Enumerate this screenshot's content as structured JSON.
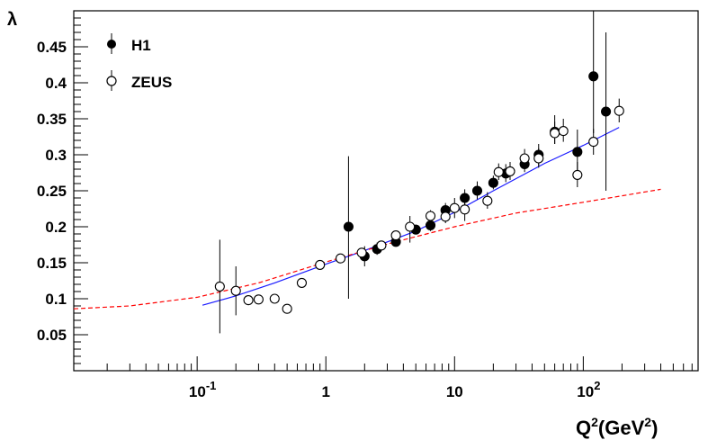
{
  "chart_data": {
    "type": "scatter",
    "xscale": "log",
    "xlim": [
      0.011,
      780
    ],
    "ylim": [
      0,
      0.5
    ],
    "grid": false,
    "legend_position": "top-left",
    "xlabel": {
      "main": "Q",
      "sup": "2",
      "unit_open": "(GeV",
      "unit_sup": "2",
      "unit_close": ")"
    },
    "ylabel": "λ",
    "x_ticks": [
      {
        "value": 0.1,
        "base": "10",
        "exp": "-1"
      },
      {
        "value": 1,
        "label": "1"
      },
      {
        "value": 10,
        "label": "10"
      },
      {
        "value": 100,
        "base": "10",
        "exp": "2"
      }
    ],
    "y_ticks": [
      {
        "value": 0.05,
        "label": "0.05"
      },
      {
        "value": 0.1,
        "label": "0.1"
      },
      {
        "value": 0.15,
        "label": "0.15"
      },
      {
        "value": 0.2,
        "label": "0.2"
      },
      {
        "value": 0.25,
        "label": "0.25"
      },
      {
        "value": 0.3,
        "label": "0.3"
      },
      {
        "value": 0.35,
        "label": "0.35"
      },
      {
        "value": 0.4,
        "label": "0.4"
      },
      {
        "value": 0.45,
        "label": "0.45"
      }
    ],
    "series": [
      {
        "name": "H1",
        "marker": "filled-circle",
        "color": "#000000",
        "points": [
          {
            "x": 1.5,
            "y": 0.2,
            "lo": 0.1,
            "hi": 0.298
          },
          {
            "x": 2.0,
            "y": 0.159,
            "lo": 0.145,
            "hi": 0.173
          },
          {
            "x": 2.5,
            "y": 0.169,
            "lo": 0.161,
            "hi": 0.178
          },
          {
            "x": 3.5,
            "y": 0.179,
            "lo": 0.173,
            "hi": 0.186
          },
          {
            "x": 5.0,
            "y": 0.196,
            "lo": 0.19,
            "hi": 0.203
          },
          {
            "x": 6.5,
            "y": 0.202,
            "lo": 0.194,
            "hi": 0.211
          },
          {
            "x": 8.5,
            "y": 0.223,
            "lo": 0.213,
            "hi": 0.233
          },
          {
            "x": 12,
            "y": 0.24,
            "lo": 0.228,
            "hi": 0.252
          },
          {
            "x": 15,
            "y": 0.25,
            "lo": 0.238,
            "hi": 0.263
          },
          {
            "x": 20,
            "y": 0.261,
            "lo": 0.252,
            "hi": 0.271
          },
          {
            "x": 25,
            "y": 0.274,
            "lo": 0.262,
            "hi": 0.287
          },
          {
            "x": 35,
            "y": 0.287,
            "lo": 0.276,
            "hi": 0.298
          },
          {
            "x": 45,
            "y": 0.3,
            "lo": 0.285,
            "hi": 0.315
          },
          {
            "x": 60,
            "y": 0.332,
            "lo": 0.315,
            "hi": 0.355
          },
          {
            "x": 90,
            "y": 0.304,
            "lo": 0.275,
            "hi": 0.335
          },
          {
            "x": 120,
            "y": 0.409,
            "lo": 0.33,
            "hi": 0.5
          },
          {
            "x": 150,
            "y": 0.36,
            "lo": 0.25,
            "hi": 0.47
          }
        ]
      },
      {
        "name": "ZEUS",
        "marker": "open-circle",
        "color": "#000000",
        "points": [
          {
            "x": 0.15,
            "y": 0.117,
            "lo": 0.052,
            "hi": 0.182
          },
          {
            "x": 0.2,
            "y": 0.111,
            "lo": 0.077,
            "hi": 0.145
          },
          {
            "x": 0.25,
            "y": 0.098,
            "lo": 0.091,
            "hi": 0.105
          },
          {
            "x": 0.3,
            "y": 0.099,
            "lo": 0.093,
            "hi": 0.105
          },
          {
            "x": 0.4,
            "y": 0.1,
            "lo": 0.095,
            "hi": 0.105
          },
          {
            "x": 0.5,
            "y": 0.086,
            "lo": 0.08,
            "hi": 0.092
          },
          {
            "x": 0.65,
            "y": 0.122,
            "lo": 0.117,
            "hi": 0.127
          },
          {
            "x": 0.9,
            "y": 0.147,
            "lo": 0.141,
            "hi": 0.153
          },
          {
            "x": 1.3,
            "y": 0.156,
            "lo": 0.15,
            "hi": 0.162
          },
          {
            "x": 1.9,
            "y": 0.164,
            "lo": 0.158,
            "hi": 0.17
          },
          {
            "x": 2.7,
            "y": 0.174,
            "lo": 0.168,
            "hi": 0.18
          },
          {
            "x": 3.5,
            "y": 0.188,
            "lo": 0.182,
            "hi": 0.194
          },
          {
            "x": 4.5,
            "y": 0.2,
            "lo": 0.178,
            "hi": 0.215
          },
          {
            "x": 6.5,
            "y": 0.215,
            "lo": 0.207,
            "hi": 0.223
          },
          {
            "x": 8.5,
            "y": 0.214,
            "lo": 0.205,
            "hi": 0.225
          },
          {
            "x": 10,
            "y": 0.226,
            "lo": 0.212,
            "hi": 0.24
          },
          {
            "x": 12,
            "y": 0.224,
            "lo": 0.208,
            "hi": 0.24
          },
          {
            "x": 18,
            "y": 0.236,
            "lo": 0.225,
            "hi": 0.248
          },
          {
            "x": 22,
            "y": 0.276,
            "lo": 0.265,
            "hi": 0.288
          },
          {
            "x": 27,
            "y": 0.277,
            "lo": 0.265,
            "hi": 0.29
          },
          {
            "x": 35,
            "y": 0.295,
            "lo": 0.283,
            "hi": 0.308
          },
          {
            "x": 45,
            "y": 0.295,
            "lo": 0.282,
            "hi": 0.309
          },
          {
            "x": 60,
            "y": 0.33,
            "lo": 0.315,
            "hi": 0.346
          },
          {
            "x": 70,
            "y": 0.333,
            "lo": 0.318,
            "hi": 0.35
          },
          {
            "x": 90,
            "y": 0.272,
            "lo": 0.255,
            "hi": 0.29
          },
          {
            "x": 120,
            "y": 0.318,
            "lo": 0.3,
            "hi": 0.336
          },
          {
            "x": 190,
            "y": 0.361,
            "lo": 0.345,
            "hi": 0.378
          }
        ]
      }
    ],
    "curves": [
      {
        "style": "solid",
        "color": "#1a1aff",
        "points": [
          [
            0.11,
            0.091
          ],
          [
            0.2,
            0.104
          ],
          [
            0.4,
            0.122
          ],
          [
            1,
            0.148
          ],
          [
            2,
            0.167
          ],
          [
            5,
            0.194
          ],
          [
            10,
            0.22
          ],
          [
            20,
            0.25
          ],
          [
            50,
            0.288
          ],
          [
            100,
            0.313
          ],
          [
            190,
            0.338
          ]
        ]
      },
      {
        "style": "dashed",
        "color": "#ff0000",
        "points": [
          [
            0.011,
            0.086
          ],
          [
            0.03,
            0.09
          ],
          [
            0.1,
            0.102
          ],
          [
            0.3,
            0.122
          ],
          [
            1,
            0.151
          ],
          [
            3,
            0.176
          ],
          [
            10,
            0.2
          ],
          [
            30,
            0.219
          ],
          [
            100,
            0.234
          ],
          [
            400,
            0.252
          ]
        ]
      }
    ]
  }
}
